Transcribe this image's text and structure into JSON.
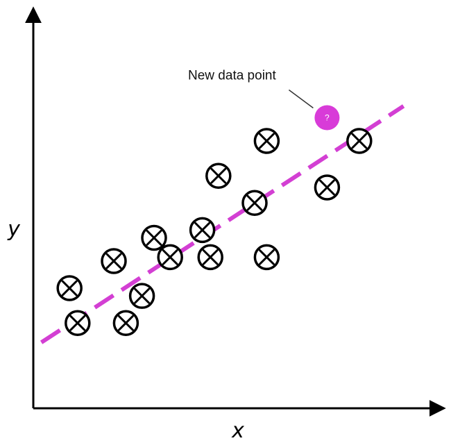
{
  "chart_data": {
    "type": "scatter",
    "title": "",
    "xlabel": "x",
    "ylabel": "y",
    "xlim": [
      0,
      10
    ],
    "ylim": [
      0,
      10
    ],
    "grid": false,
    "legend": "none",
    "points": [
      {
        "x": 0.9,
        "y": 3.1
      },
      {
        "x": 1.1,
        "y": 2.2
      },
      {
        "x": 2.0,
        "y": 3.8
      },
      {
        "x": 2.3,
        "y": 2.2
      },
      {
        "x": 2.7,
        "y": 2.9
      },
      {
        "x": 3.0,
        "y": 4.4
      },
      {
        "x": 3.4,
        "y": 3.9
      },
      {
        "x": 4.2,
        "y": 4.6
      },
      {
        "x": 4.4,
        "y": 3.9
      },
      {
        "x": 4.6,
        "y": 6.0
      },
      {
        "x": 5.5,
        "y": 5.3
      },
      {
        "x": 5.8,
        "y": 6.9
      },
      {
        "x": 5.8,
        "y": 3.9
      },
      {
        "x": 7.3,
        "y": 5.7
      },
      {
        "x": 8.1,
        "y": 6.9
      }
    ],
    "trend_line": {
      "x": [
        0.2,
        9.2
      ],
      "y": [
        1.7,
        7.8
      ]
    },
    "new_point": {
      "x": 7.3,
      "y": 7.5,
      "label": "?"
    },
    "annotation": {
      "text": "New data point"
    }
  },
  "colors": {
    "axis": "#000000",
    "marker": "#000000",
    "trend_line": "#d33fd3",
    "new_point": "#d83bd8"
  }
}
